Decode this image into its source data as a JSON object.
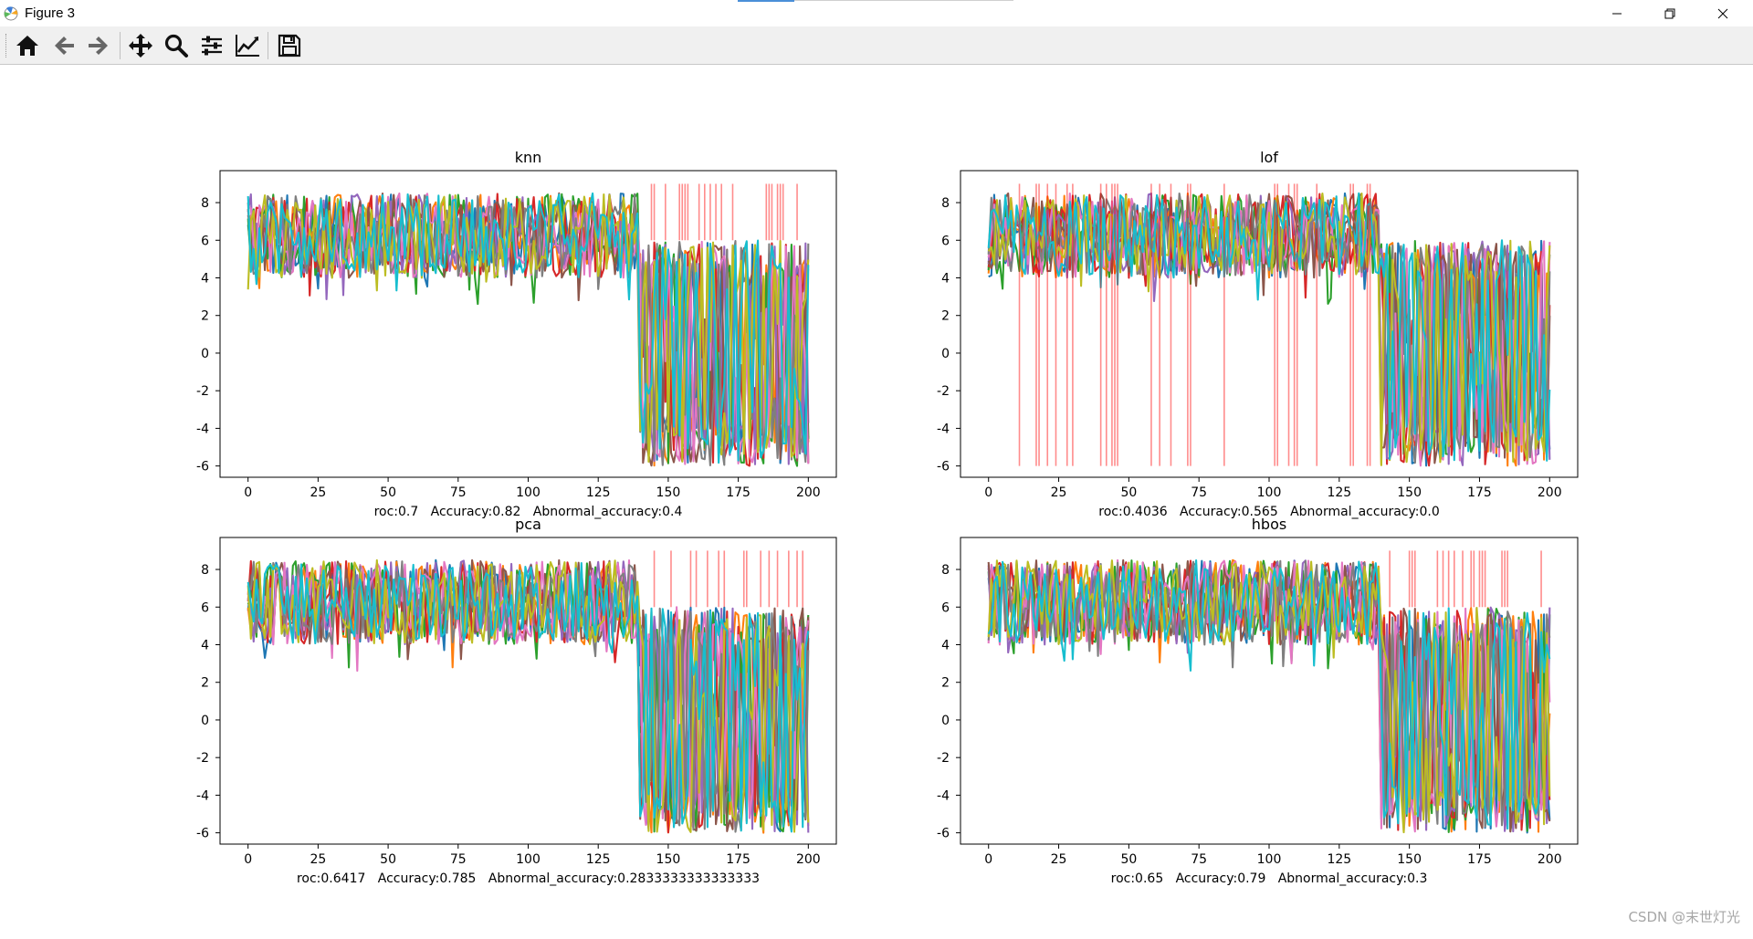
{
  "window": {
    "title": "Figure 3",
    "watermark": "CSDN @末世灯光"
  },
  "toolbar": {
    "buttons": [
      {
        "name": "home-button",
        "icon": "home-icon"
      },
      {
        "name": "back-button",
        "icon": "arrow-left-icon"
      },
      {
        "name": "forward-button",
        "icon": "arrow-right-icon"
      },
      {
        "name": "pan-button",
        "icon": "move-icon"
      },
      {
        "name": "zoom-button",
        "icon": "magnifier-icon"
      },
      {
        "name": "subplots-button",
        "icon": "sliders-icon"
      },
      {
        "name": "edit-axes-button",
        "icon": "line-chart-icon"
      },
      {
        "name": "save-button",
        "icon": "floppy-icon"
      }
    ]
  },
  "colors": {
    "red_marker": "#ff0000",
    "accent": "#4a8fd8"
  },
  "chart_data": [
    {
      "type": "line",
      "title": "knn",
      "xlabel": "roc:0.7   Accuracy:0.82   Abnormal_accuracy:0.4",
      "xlim": [
        -10,
        210
      ],
      "ylim": [
        -6.6,
        9.7
      ],
      "xticks": [
        0,
        25,
        50,
        75,
        100,
        125,
        150,
        175,
        200
      ],
      "yticks": [
        -6,
        -4,
        -2,
        0,
        2,
        4,
        6,
        8
      ],
      "normal_range": [
        0,
        140
      ],
      "normal_band": [
        4,
        8.5
      ],
      "abnormal_range": [
        140,
        200
      ],
      "abnormal_band": [
        -6,
        6
      ],
      "n_series": 10,
      "anomaly_markers": {
        "from": 6,
        "to": 9,
        "x": [
          144,
          145,
          149,
          154,
          155,
          156,
          157,
          161,
          163,
          165,
          167,
          169,
          173,
          185,
          186,
          187,
          189,
          190,
          191,
          196
        ]
      }
    },
    {
      "type": "line",
      "title": "lof",
      "xlabel": "roc:0.4036   Accuracy:0.565   Abnormal_accuracy:0.0",
      "xlim": [
        -10,
        210
      ],
      "ylim": [
        -6.6,
        9.7
      ],
      "xticks": [
        0,
        25,
        50,
        75,
        100,
        125,
        150,
        175,
        200
      ],
      "yticks": [
        -6,
        -4,
        -2,
        0,
        2,
        4,
        6,
        8
      ],
      "normal_range": [
        0,
        140
      ],
      "normal_band": [
        4,
        8.5
      ],
      "abnormal_range": [
        140,
        200
      ],
      "abnormal_band": [
        -6,
        6
      ],
      "n_series": 10,
      "anomaly_markers": {
        "from": -6,
        "to": 9,
        "x": [
          11,
          17,
          18,
          21,
          24,
          28,
          30,
          40,
          42,
          44,
          45,
          46,
          58,
          61,
          65,
          71,
          72,
          84,
          102,
          103,
          107,
          109,
          110,
          117,
          129,
          130,
          135,
          136
        ]
      }
    },
    {
      "type": "line",
      "title": "pca",
      "xlabel": "roc:0.6417   Accuracy:0.785   Abnormal_accuracy:0.2833333333333333",
      "xlim": [
        -10,
        210
      ],
      "ylim": [
        -6.6,
        9.7
      ],
      "xticks": [
        0,
        25,
        50,
        75,
        100,
        125,
        150,
        175,
        200
      ],
      "yticks": [
        -6,
        -4,
        -2,
        0,
        2,
        4,
        6,
        8
      ],
      "normal_range": [
        0,
        140
      ],
      "normal_band": [
        4,
        8.5
      ],
      "abnormal_range": [
        140,
        200
      ],
      "abnormal_band": [
        -6,
        6
      ],
      "n_series": 10,
      "anomaly_markers": {
        "from": 6,
        "to": 9,
        "x": [
          145,
          151,
          158,
          160,
          164,
          168,
          170,
          177,
          178,
          183,
          186,
          189,
          193,
          196,
          198
        ]
      }
    },
    {
      "type": "line",
      "title": "hbos",
      "xlabel": "roc:0.65   Accuracy:0.79   Abnormal_accuracy:0.3",
      "xlim": [
        -10,
        210
      ],
      "ylim": [
        -6.6,
        9.7
      ],
      "xticks": [
        0,
        25,
        50,
        75,
        100,
        125,
        150,
        175,
        200
      ],
      "yticks": [
        -6,
        -4,
        -2,
        0,
        2,
        4,
        6,
        8
      ],
      "normal_range": [
        0,
        140
      ],
      "normal_band": [
        4,
        8.5
      ],
      "abnormal_range": [
        140,
        200
      ],
      "abnormal_band": [
        -6,
        6
      ],
      "n_series": 10,
      "anomaly_markers": {
        "from": 6,
        "to": 9,
        "x": [
          143,
          150,
          151,
          152,
          160,
          162,
          164,
          166,
          169,
          172,
          173,
          175,
          176,
          177,
          183,
          184,
          185,
          197
        ]
      }
    }
  ]
}
